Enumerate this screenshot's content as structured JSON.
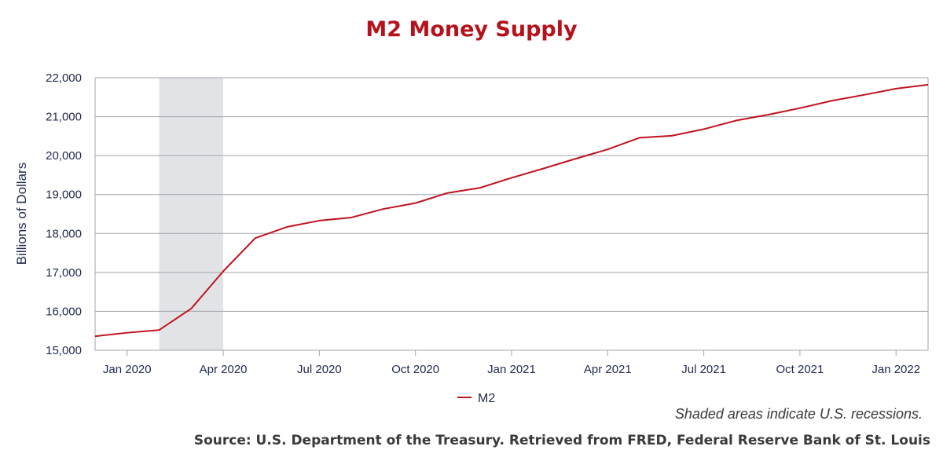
{
  "chart_data": {
    "type": "line",
    "title": "M2 Money Supply",
    "ylabel": "Billions of Dollars",
    "xlabel": "",
    "ylim": [
      15000,
      22000
    ],
    "yticks": [
      15000,
      16000,
      17000,
      18000,
      19000,
      20000,
      21000,
      22000
    ],
    "ytick_labels": [
      "15,000",
      "16,000",
      "17,000",
      "18,000",
      "19,000",
      "20,000",
      "21,000",
      "22,000"
    ],
    "xlim": [
      "2019-12",
      "2022-02"
    ],
    "xticks": [
      "2020-01",
      "2020-04",
      "2020-07",
      "2020-10",
      "2021-01",
      "2021-04",
      "2021-07",
      "2021-10",
      "2022-01"
    ],
    "xtick_labels": [
      "Jan 2020",
      "Apr 2020",
      "Jul 2020",
      "Oct 2020",
      "Jan 2021",
      "Apr 2021",
      "Jul 2021",
      "Oct 2021",
      "Jan 2022"
    ],
    "recession": {
      "start": "2020-02",
      "end": "2020-04"
    },
    "grid": true,
    "legend_position": "bottom-center",
    "series": [
      {
        "name": "M2",
        "color": "#c0121e",
        "x": [
          "2019-12",
          "2020-01",
          "2020-02",
          "2020-03",
          "2020-04",
          "2020-05",
          "2020-06",
          "2020-07",
          "2020-08",
          "2020-09",
          "2020-10",
          "2020-11",
          "2020-12",
          "2021-01",
          "2021-02",
          "2021-03",
          "2021-04",
          "2021-05",
          "2021-06",
          "2021-07",
          "2021-08",
          "2021-09",
          "2021-10",
          "2021-11",
          "2021-12",
          "2022-01",
          "2022-02"
        ],
        "y": [
          15360,
          15450,
          15520,
          16070,
          17030,
          17880,
          18170,
          18330,
          18410,
          18630,
          18780,
          19040,
          19170,
          19430,
          19670,
          19920,
          20160,
          20460,
          20510,
          20680,
          20900,
          21050,
          21220,
          21410,
          21560,
          21720,
          21820
        ]
      }
    ]
  },
  "notes": {
    "recession_note": "Shaded areas indicate U.S. recessions.",
    "source": "Source: U.S. Department of the Treasury. Retrieved from FRED, Federal Reserve Bank of St. Louis"
  },
  "colors": {
    "title": "#b5121b",
    "line": "#c0121e",
    "recession_shade": "#e1e3e6",
    "grid": "#a0a4ab",
    "axis_text": "#1f2a4d"
  }
}
